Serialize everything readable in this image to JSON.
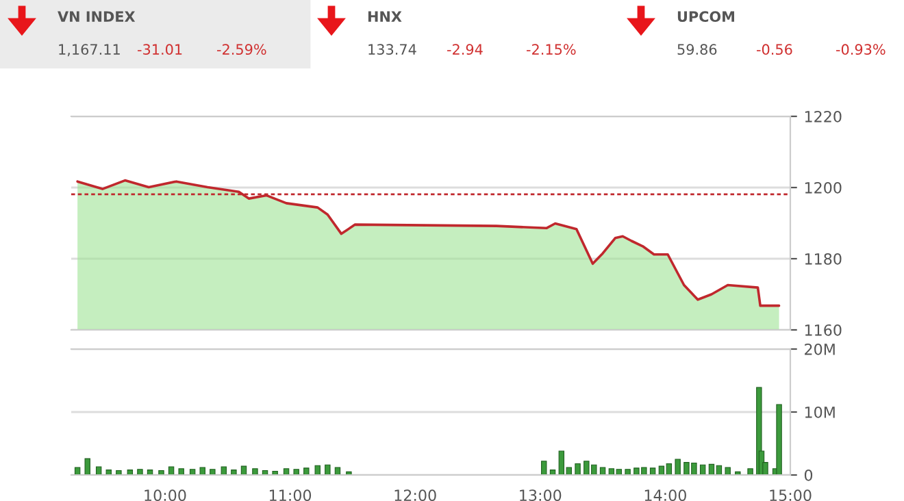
{
  "chart_data": [
    {
      "type": "other",
      "annotations": [
        "VN INDEX",
        "1,167.11",
        "-31.01",
        "-2.59%",
        "HNX",
        "133.74",
        "-2.94",
        "-2.15%",
        "UPCOM",
        "59.86",
        "-0.56",
        "-0.93%"
      ]
    },
    {
      "type": "line",
      "xlim": [
        9.25,
        15.0
      ],
      "ylim": [
        1160,
        1220
      ],
      "yticks": [
        1160,
        1180,
        1200,
        1220
      ],
      "tick_labels": "y",
      "grid": "y",
      "x": [
        9.3,
        9.5,
        9.68,
        9.87,
        10.09,
        10.34,
        10.59,
        10.67,
        10.81,
        10.97,
        11.22,
        11.3,
        11.41,
        11.52,
        12.65,
        13.05,
        13.12,
        13.29,
        13.42,
        13.5,
        13.6,
        13.66,
        13.73,
        13.82,
        13.91,
        14.02,
        14.15,
        14.26,
        14.37,
        14.5,
        14.74,
        14.76,
        14.91
      ],
      "series": [
        {
          "type": "area",
          "color": "#9fe394",
          "values": [
            1201.7,
            1199.6,
            1202.0,
            1200.1,
            1201.7,
            1200.1,
            1198.8,
            1196.9,
            1197.8,
            1195.6,
            1194.4,
            1192.4,
            1187.0,
            1189.6,
            1189.2,
            1188.6,
            1189.9,
            1188.3,
            1178.6,
            1181.5,
            1185.8,
            1186.3,
            1185.0,
            1183.5,
            1181.2,
            1181.2,
            1172.6,
            1168.5,
            1170.0,
            1172.6,
            1171.9,
            1166.8,
            1166.8
          ]
        },
        {
          "type": "line",
          "color": "#c0282d",
          "values": [
            1201.7,
            1199.6,
            1202.0,
            1200.1,
            1201.7,
            1200.1,
            1198.8,
            1196.9,
            1197.8,
            1195.6,
            1194.4,
            1192.4,
            1187.0,
            1189.6,
            1189.2,
            1188.6,
            1189.9,
            1188.3,
            1178.6,
            1181.5,
            1185.8,
            1186.3,
            1185.0,
            1183.5,
            1181.2,
            1181.2,
            1172.6,
            1168.5,
            1170.0,
            1172.6,
            1171.9,
            1166.8,
            1166.8
          ]
        }
      ],
      "ref_lines": [
        {
          "axis": "y",
          "value": 1198.12,
          "color": "#c0282d",
          "line_style": "dashed"
        }
      ]
    },
    {
      "type": "bar",
      "xlim": [
        9.25,
        15.0
      ],
      "ylim": [
        0,
        20
      ],
      "yticks": [
        0,
        {
          "value": 10,
          "label": "10M"
        },
        {
          "value": 20,
          "label": "20M"
        }
      ],
      "xticks": [
        {
          "value": 10,
          "label": "10:00"
        },
        {
          "value": 11,
          "label": "11:00"
        },
        {
          "value": 12,
          "label": "12:00"
        },
        {
          "value": 13,
          "label": "13:00"
        },
        {
          "value": 14,
          "label": "14:00"
        },
        {
          "value": 15,
          "label": "15:00"
        }
      ],
      "grid": "y",
      "x": [
        9.3,
        9.38,
        9.47,
        9.55,
        9.63,
        9.72,
        9.8,
        9.88,
        9.97,
        10.05,
        10.13,
        10.22,
        10.3,
        10.38,
        10.47,
        10.55,
        10.63,
        10.72,
        10.8,
        10.88,
        10.97,
        11.05,
        11.13,
        11.22,
        11.3,
        11.38,
        11.47,
        13.03,
        13.1,
        13.17,
        13.23,
        13.3,
        13.37,
        13.43,
        13.5,
        13.57,
        13.63,
        13.7,
        13.77,
        13.83,
        13.9,
        13.97,
        14.03,
        14.1,
        14.17,
        14.23,
        14.3,
        14.37,
        14.43,
        14.5,
        14.58,
        14.68,
        14.75,
        14.77,
        14.8,
        14.88,
        14.91
      ],
      "series": [
        {
          "color": "#3c9a3c",
          "values": [
            1.2,
            2.6,
            1.3,
            0.8,
            0.7,
            0.8,
            0.9,
            0.8,
            0.7,
            1.3,
            1.0,
            0.9,
            1.2,
            0.9,
            1.3,
            0.8,
            1.4,
            1.0,
            0.7,
            0.6,
            1.0,
            0.9,
            1.1,
            1.5,
            1.6,
            1.2,
            0.5,
            2.2,
            0.8,
            3.8,
            1.2,
            1.8,
            2.2,
            1.6,
            1.2,
            1.0,
            0.9,
            0.9,
            1.1,
            1.2,
            1.1,
            1.4,
            1.8,
            2.5,
            2.0,
            1.9,
            1.6,
            1.7,
            1.5,
            1.2,
            0.5,
            1.0,
            13.9,
            3.8,
            2.0,
            1.0,
            11.2
          ]
        }
      ]
    }
  ]
}
